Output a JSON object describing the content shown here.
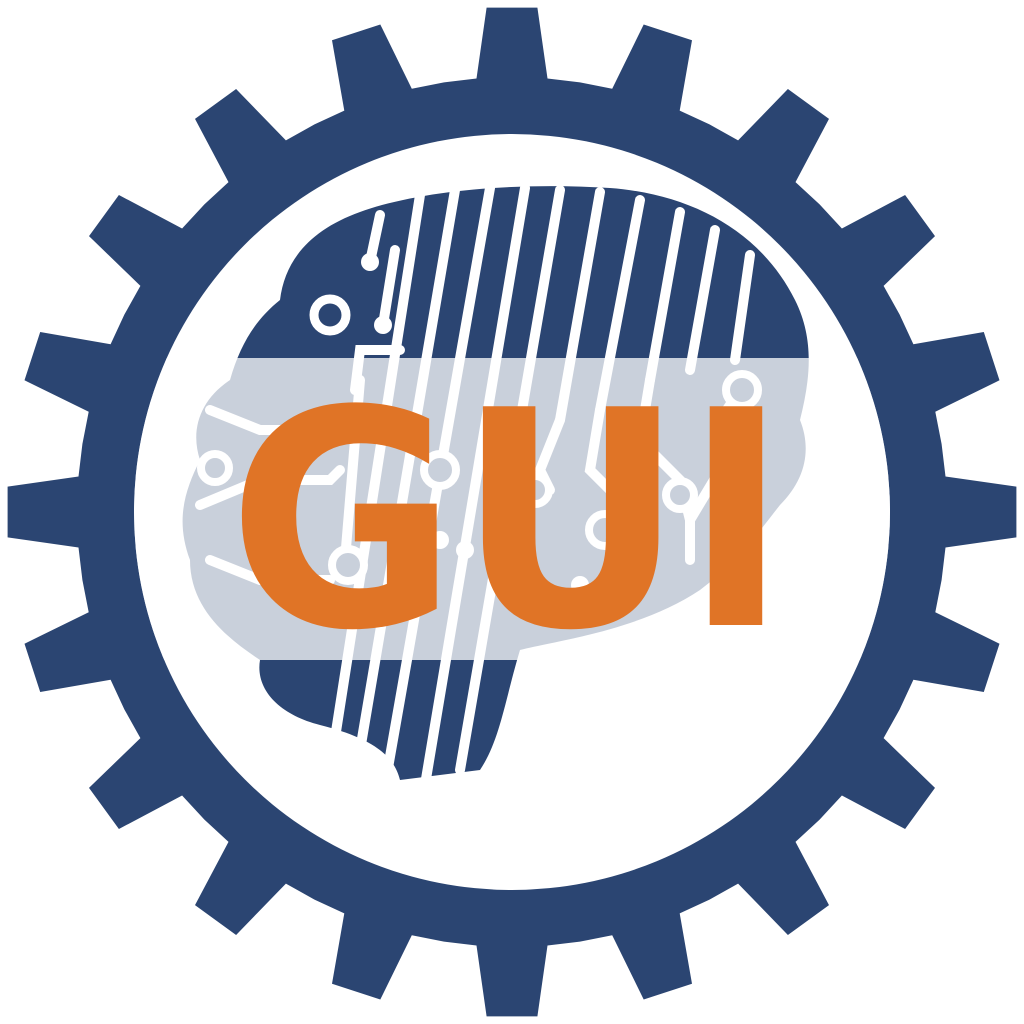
{
  "logo": {
    "text": "GUI",
    "colors": {
      "gear": "#2b4572",
      "text": "#e07426",
      "band": "#ccd2dd",
      "inner": "#ffffff"
    },
    "icons": [
      "gear-icon",
      "circuit-brain-icon"
    ]
  }
}
